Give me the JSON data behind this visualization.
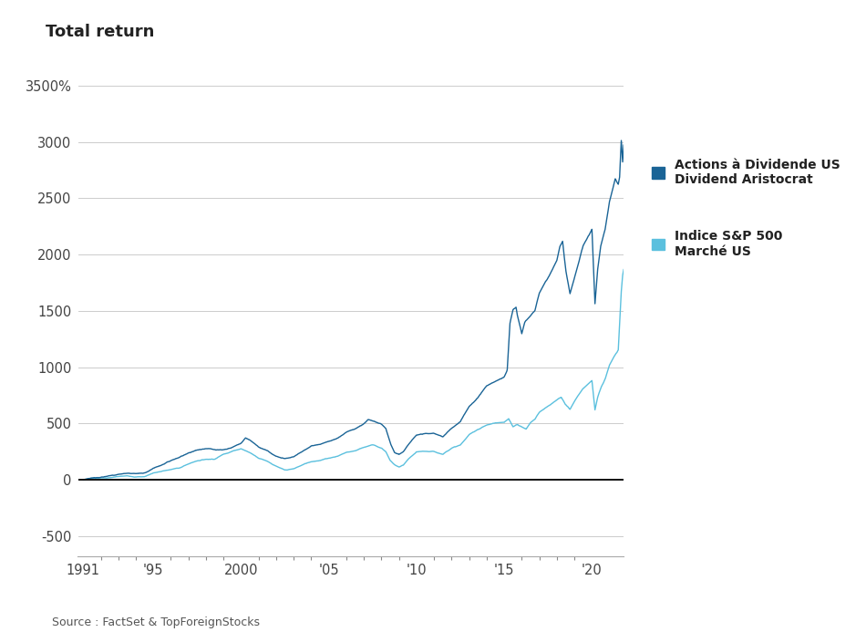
{
  "title": "Total return",
  "source_text": "Source : FactSet & TopForeignStocks",
  "legend_aristocrat": "Actions à Dividende US\nDividend Aristocrat",
  "legend_sp500": "Indice S&P 500\nMarché US",
  "color_aristocrat": "#1a6496",
  "color_sp500": "#5bc0de",
  "background_color": "#ffffff",
  "yticks": [
    -500,
    0,
    500,
    1000,
    1500,
    2000,
    2500,
    3000,
    3500
  ],
  "ytick_labels": [
    "-500",
    "0",
    "500",
    "1000",
    "1500",
    "2000",
    "2500",
    "3000",
    "3500%"
  ],
  "xlim_start": 1990.7,
  "xlim_end": 2021.8,
  "ylim_bottom": -680,
  "ylim_top": 3700,
  "xtick_years": [
    1991,
    1995,
    2000,
    2005,
    2010,
    2015,
    2020
  ],
  "xtick_labels": [
    "1991",
    "'95",
    "2000",
    "'05",
    "'10",
    "'15",
    "'20"
  ],
  "sp500_keypoints": [
    [
      1991.0,
      0
    ],
    [
      1991.5,
      15
    ],
    [
      1992.0,
      18
    ],
    [
      1992.5,
      20
    ],
    [
      1993.0,
      28
    ],
    [
      1993.5,
      32
    ],
    [
      1994.0,
      28
    ],
    [
      1994.5,
      30
    ],
    [
      1995.0,
      65
    ],
    [
      1995.5,
      80
    ],
    [
      1996.0,
      95
    ],
    [
      1996.5,
      110
    ],
    [
      1997.0,
      145
    ],
    [
      1997.5,
      175
    ],
    [
      1998.0,
      190
    ],
    [
      1998.5,
      195
    ],
    [
      1999.0,
      240
    ],
    [
      1999.5,
      270
    ],
    [
      2000.0,
      295
    ],
    [
      2000.5,
      260
    ],
    [
      2001.0,
      215
    ],
    [
      2001.5,
      190
    ],
    [
      2002.0,
      145
    ],
    [
      2002.5,
      105
    ],
    [
      2003.0,
      115
    ],
    [
      2003.5,
      150
    ],
    [
      2004.0,
      180
    ],
    [
      2004.5,
      195
    ],
    [
      2005.0,
      215
    ],
    [
      2005.5,
      235
    ],
    [
      2006.0,
      270
    ],
    [
      2006.5,
      285
    ],
    [
      2007.0,
      320
    ],
    [
      2007.5,
      340
    ],
    [
      2008.0,
      310
    ],
    [
      2008.25,
      280
    ],
    [
      2008.5,
      200
    ],
    [
      2008.75,
      160
    ],
    [
      2009.0,
      140
    ],
    [
      2009.25,
      155
    ],
    [
      2009.5,
      200
    ],
    [
      2009.75,
      235
    ],
    [
      2010.0,
      265
    ],
    [
      2010.5,
      270
    ],
    [
      2011.0,
      265
    ],
    [
      2011.5,
      245
    ],
    [
      2012.0,
      305
    ],
    [
      2012.5,
      330
    ],
    [
      2013.0,
      420
    ],
    [
      2013.5,
      470
    ],
    [
      2014.0,
      510
    ],
    [
      2014.5,
      530
    ],
    [
      2015.0,
      530
    ],
    [
      2015.25,
      560
    ],
    [
      2015.5,
      490
    ],
    [
      2015.75,
      510
    ],
    [
      2016.0,
      490
    ],
    [
      2016.25,
      470
    ],
    [
      2016.5,
      530
    ],
    [
      2016.75,
      560
    ],
    [
      2017.0,
      620
    ],
    [
      2017.5,
      680
    ],
    [
      2018.0,
      740
    ],
    [
      2018.25,
      760
    ],
    [
      2018.5,
      690
    ],
    [
      2018.75,
      650
    ],
    [
      2019.0,
      720
    ],
    [
      2019.5,
      830
    ],
    [
      2020.0,
      900
    ],
    [
      2020.17,
      640
    ],
    [
      2020.33,
      760
    ],
    [
      2020.5,
      840
    ],
    [
      2020.75,
      920
    ],
    [
      2021.0,
      1050
    ],
    [
      2021.25,
      1120
    ],
    [
      2021.5,
      1180
    ],
    [
      2021.67,
      1700
    ],
    [
      2021.75,
      1850
    ],
    [
      2021.83,
      1920
    ]
  ],
  "aristocrat_keypoints": [
    [
      1991.0,
      0
    ],
    [
      1991.5,
      18
    ],
    [
      1992.0,
      30
    ],
    [
      1992.5,
      40
    ],
    [
      1993.0,
      55
    ],
    [
      1993.5,
      65
    ],
    [
      1994.0,
      62
    ],
    [
      1994.5,
      68
    ],
    [
      1995.0,
      110
    ],
    [
      1995.5,
      135
    ],
    [
      1996.0,
      165
    ],
    [
      1996.5,
      190
    ],
    [
      1997.0,
      230
    ],
    [
      1997.5,
      260
    ],
    [
      1998.0,
      275
    ],
    [
      1998.5,
      270
    ],
    [
      1999.0,
      265
    ],
    [
      1999.5,
      285
    ],
    [
      2000.0,
      320
    ],
    [
      2000.25,
      370
    ],
    [
      2000.5,
      350
    ],
    [
      2001.0,
      290
    ],
    [
      2001.5,
      255
    ],
    [
      2002.0,
      210
    ],
    [
      2002.5,
      185
    ],
    [
      2003.0,
      195
    ],
    [
      2003.5,
      245
    ],
    [
      2004.0,
      285
    ],
    [
      2004.5,
      305
    ],
    [
      2005.0,
      330
    ],
    [
      2005.5,
      360
    ],
    [
      2006.0,
      415
    ],
    [
      2006.5,
      445
    ],
    [
      2007.0,
      495
    ],
    [
      2007.25,
      530
    ],
    [
      2007.5,
      520
    ],
    [
      2008.0,
      490
    ],
    [
      2008.25,
      450
    ],
    [
      2008.5,
      320
    ],
    [
      2008.75,
      230
    ],
    [
      2009.0,
      215
    ],
    [
      2009.25,
      240
    ],
    [
      2009.5,
      290
    ],
    [
      2009.75,
      340
    ],
    [
      2010.0,
      385
    ],
    [
      2010.5,
      400
    ],
    [
      2011.0,
      395
    ],
    [
      2011.5,
      370
    ],
    [
      2012.0,
      450
    ],
    [
      2012.5,
      510
    ],
    [
      2013.0,
      650
    ],
    [
      2013.5,
      730
    ],
    [
      2014.0,
      840
    ],
    [
      2014.5,
      880
    ],
    [
      2015.0,
      920
    ],
    [
      2015.17,
      980
    ],
    [
      2015.33,
      1400
    ],
    [
      2015.5,
      1520
    ],
    [
      2015.67,
      1550
    ],
    [
      2015.75,
      1480
    ],
    [
      2016.0,
      1320
    ],
    [
      2016.17,
      1420
    ],
    [
      2016.5,
      1480
    ],
    [
      2016.75,
      1530
    ],
    [
      2017.0,
      1680
    ],
    [
      2017.5,
      1820
    ],
    [
      2018.0,
      1980
    ],
    [
      2018.17,
      2100
    ],
    [
      2018.33,
      2150
    ],
    [
      2018.5,
      1900
    ],
    [
      2018.75,
      1680
    ],
    [
      2019.0,
      1820
    ],
    [
      2019.5,
      2100
    ],
    [
      2020.0,
      2250
    ],
    [
      2020.17,
      1580
    ],
    [
      2020.33,
      1900
    ],
    [
      2020.5,
      2100
    ],
    [
      2020.75,
      2250
    ],
    [
      2021.0,
      2500
    ],
    [
      2021.17,
      2600
    ],
    [
      2021.33,
      2700
    ],
    [
      2021.5,
      2650
    ],
    [
      2021.58,
      2720
    ],
    [
      2021.67,
      3050
    ],
    [
      2021.75,
      2850
    ],
    [
      2021.83,
      3060
    ]
  ]
}
